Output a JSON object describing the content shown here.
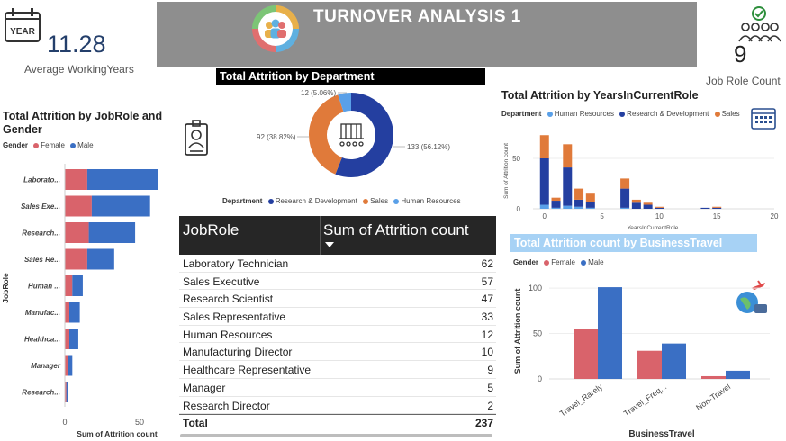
{
  "header": {
    "title": "TURNOVER ANALYSIS 1"
  },
  "kpis": {
    "avg_working_years": {
      "value": "11.28",
      "label": "Average WorkingYears",
      "icon": "year-calendar-icon"
    },
    "job_role_count": {
      "value": "9",
      "label": "Job Role Count",
      "icon": "team-check-icon"
    }
  },
  "colors": {
    "female": "#d9636b",
    "male": "#3a6fc4",
    "rnd": "#243fa0",
    "sales": "#e07a3a",
    "hr": "#5aa0e8",
    "banner": "#8e8e8e"
  },
  "chart_data": [
    {
      "id": "jobrole_gender",
      "type": "bar",
      "orientation": "horizontal",
      "stacked": true,
      "title": "Total Attrition by JobRole and Gender",
      "legend_title": "Gender",
      "xlabel": "Sum of Attrition count",
      "ylabel": "JobRole",
      "xlim": [
        0,
        62
      ],
      "xticks": [
        "0",
        "50"
      ],
      "categories": [
        "Laborato...",
        "Sales Exe...",
        "Research...",
        "Sales Re...",
        "Human ...",
        "Manufac...",
        "Healthca...",
        "Manager",
        "Research..."
      ],
      "series": [
        {
          "name": "Female",
          "values": [
            15,
            18,
            16,
            15,
            5,
            3,
            3,
            2,
            1
          ]
        },
        {
          "name": "Male",
          "values": [
            47,
            39,
            31,
            18,
            7,
            7,
            6,
            3,
            1
          ]
        }
      ]
    },
    {
      "id": "dept_donut",
      "type": "pie",
      "donut": true,
      "title": "Total Attrition by Department",
      "legend_title": "Department",
      "categories": [
        "Research & Development",
        "Sales",
        "Human Resources"
      ],
      "values": [
        133,
        92,
        12
      ],
      "data_labels": [
        "133 (56.12%)",
        "92 (38.82%)",
        "12 (5.06%)"
      ]
    },
    {
      "id": "years_role",
      "type": "bar",
      "stacked": true,
      "title": "Total Attrition by YearsInCurrentRole",
      "legend_title": "Department",
      "xlabel": "YearsInCurrentRole",
      "ylabel": "Sum of Attrition count",
      "xlim": [
        -1,
        20
      ],
      "ylim": [
        0,
        75
      ],
      "xticks": [
        "0",
        "5",
        "10",
        "15",
        "20"
      ],
      "yticks": [
        "0",
        "50"
      ],
      "x": [
        0,
        1,
        2,
        3,
        4,
        5,
        6,
        7,
        8,
        9,
        10,
        11,
        12,
        13,
        14,
        15
      ],
      "series": [
        {
          "name": "Human Resources",
          "values": [
            4,
            1,
            3,
            2,
            1,
            0,
            0,
            1,
            0,
            0,
            0,
            0,
            0,
            0,
            0,
            0
          ]
        },
        {
          "name": "Research & Development",
          "values": [
            46,
            7,
            38,
            7,
            6,
            0,
            0,
            19,
            6,
            4,
            1,
            0,
            0,
            0,
            1,
            1
          ]
        },
        {
          "name": "Sales",
          "values": [
            23,
            3,
            23,
            11,
            8,
            0,
            0,
            10,
            3,
            2,
            1,
            0,
            0,
            0,
            0,
            1
          ]
        }
      ]
    },
    {
      "id": "business_travel",
      "type": "bar",
      "title": "Total Attrition count by BusinessTravel",
      "legend_title": "Gender",
      "xlabel": "BusinessTravel",
      "ylabel": "Sum of Attrition count",
      "ylim": [
        0,
        110
      ],
      "yticks": [
        "0",
        "50",
        "100"
      ],
      "categories": [
        "Travel_Rarely",
        "Travel_Freq...",
        "Non-Travel"
      ],
      "series": [
        {
          "name": "Female",
          "values": [
            55,
            31,
            3
          ]
        },
        {
          "name": "Male",
          "values": [
            101,
            39,
            9
          ]
        }
      ]
    }
  ],
  "jobrole_table": {
    "col1": "JobRole",
    "col2": "Sum of Attrition count",
    "rows": [
      {
        "name": "Laboratory Technician",
        "value": "62"
      },
      {
        "name": "Sales Executive",
        "value": "57"
      },
      {
        "name": "Research Scientist",
        "value": "47"
      },
      {
        "name": "Sales Representative",
        "value": "33"
      },
      {
        "name": "Human Resources",
        "value": "12"
      },
      {
        "name": "Manufacturing Director",
        "value": "10"
      },
      {
        "name": "Healthcare Representative",
        "value": "9"
      },
      {
        "name": "Manager",
        "value": "5"
      },
      {
        "name": "Research Director",
        "value": "2"
      }
    ],
    "total_label": "Total",
    "total_value": "237"
  }
}
